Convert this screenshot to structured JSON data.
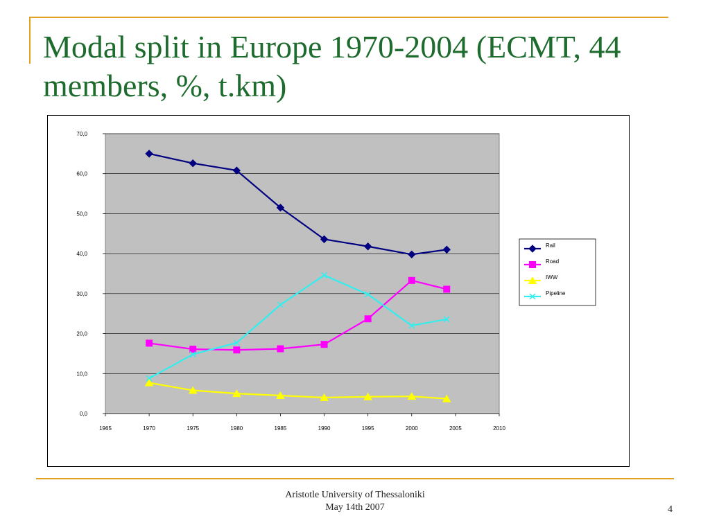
{
  "slide": {
    "title": "Modal split in Europe 1970-2004 (ECMT, 44 members, %, t.km)",
    "footer_line1": "Aristotle University of  Thessaloniki",
    "footer_line2": "May 14th 2007",
    "page_number": "4"
  },
  "colors": {
    "accent": "#e0a020",
    "title": "#1e6b2e",
    "plot_bg": "#c0c0c0"
  },
  "chart_data": {
    "type": "line",
    "title": "",
    "xlabel": "",
    "ylabel": "",
    "xlim": [
      1965,
      2010
    ],
    "ylim": [
      0,
      70
    ],
    "x_ticks": [
      "1965",
      "1970",
      "1975",
      "1980",
      "1985",
      "1990",
      "1995",
      "2000",
      "2005",
      "2010"
    ],
    "y_ticks": [
      "0,0",
      "10,0",
      "20,0",
      "30,0",
      "40,0",
      "50,0",
      "60,0",
      "70,0"
    ],
    "grid": "horizontal",
    "legend_position": "right",
    "series": [
      {
        "name": "Rail",
        "color": "#000080",
        "marker": "diamond",
        "x": [
          1970,
          1975,
          1980,
          1985,
          1990,
          1995,
          2000,
          2004
        ],
        "y": [
          65.0,
          62.6,
          60.8,
          51.5,
          43.6,
          41.8,
          39.8,
          41.0
        ]
      },
      {
        "name": "Road",
        "color": "#ff00ff",
        "marker": "square",
        "x": [
          1970,
          1975,
          1980,
          1985,
          1990,
          1995,
          2000,
          2004
        ],
        "y": [
          17.6,
          16.1,
          15.9,
          16.2,
          17.3,
          23.7,
          33.3,
          31.1
        ]
      },
      {
        "name": "IWW",
        "color": "#ffff00",
        "marker": "triangle",
        "x": [
          1970,
          1975,
          1980,
          1985,
          1990,
          1995,
          2000,
          2004
        ],
        "y": [
          7.7,
          5.8,
          5.0,
          4.5,
          4.0,
          4.2,
          4.3,
          3.7
        ]
      },
      {
        "name": "Pipeline",
        "color": "#33eeee",
        "marker": "x",
        "x": [
          1970,
          1975,
          1980,
          1985,
          1990,
          1995,
          2000,
          2004
        ],
        "y": [
          8.8,
          14.8,
          17.7,
          27.2,
          34.6,
          29.8,
          22.0,
          23.6
        ]
      }
    ]
  }
}
